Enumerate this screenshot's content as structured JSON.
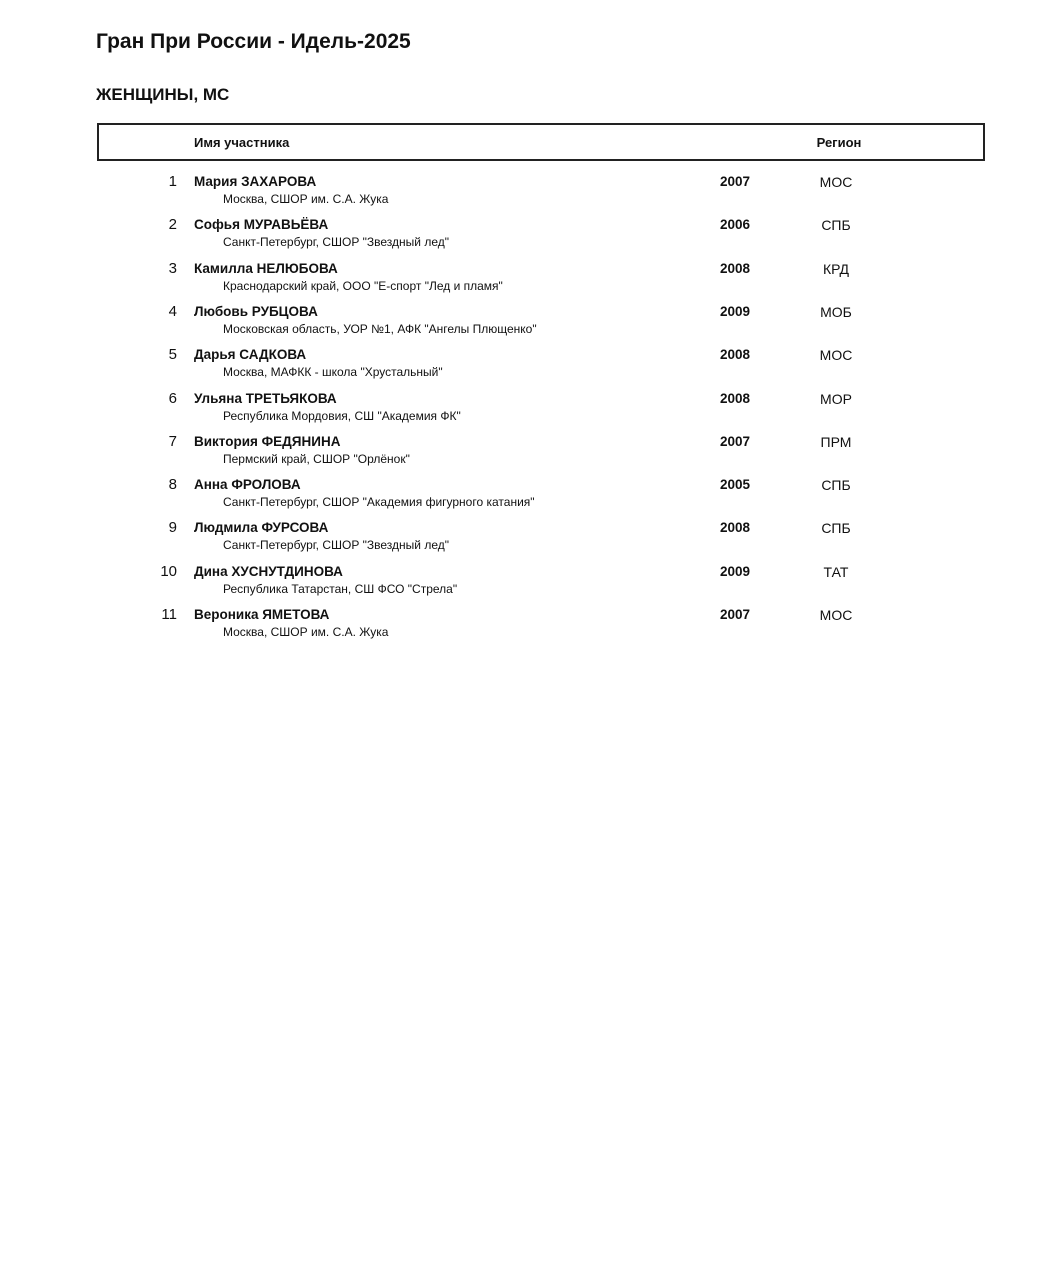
{
  "title": "Гран При России - Идель-2025",
  "category": "ЖЕНЩИНЫ, МС",
  "header": {
    "name": "Имя участника",
    "region": "Регион"
  },
  "participants": [
    {
      "num": "1",
      "name": "Мария ЗАХАРОВА",
      "club": "Москва, СШОР им. С.А. Жука",
      "year": "2007",
      "region": "МОС"
    },
    {
      "num": "2",
      "name": "Софья МУРАВЬЁВА",
      "club": "Санкт-Петербург, СШОР \"Звездный лед\"",
      "year": "2006",
      "region": "СПБ"
    },
    {
      "num": "3",
      "name": "Камилла НЕЛЮБОВА",
      "club": "Краснодарский край, ООО \"Е-спорт \"Лед и пламя\"",
      "year": "2008",
      "region": "КРД"
    },
    {
      "num": "4",
      "name": "Любовь РУБЦОВА",
      "club": "Московская область, УОР №1, АФК \"Ангелы Плющенко\"",
      "year": "2009",
      "region": "МОБ"
    },
    {
      "num": "5",
      "name": "Дарья САДКОВА",
      "club": "Москва, МАФКК - школа \"Хрустальный\"",
      "year": "2008",
      "region": "МОС"
    },
    {
      "num": "6",
      "name": "Ульяна ТРЕТЬЯКОВА",
      "club": "Республика Мордовия, СШ \"Академия ФК\"",
      "year": "2008",
      "region": "МОР"
    },
    {
      "num": "7",
      "name": "Виктория ФЕДЯНИНА",
      "club": "Пермский край, СШОР \"Орлёнок\"",
      "year": "2007",
      "region": "ПРМ"
    },
    {
      "num": "8",
      "name": "Анна ФРОЛОВА",
      "club": "Санкт-Петербург, СШОР \"Академия фигурного катания\"",
      "year": "2005",
      "region": "СПБ"
    },
    {
      "num": "9",
      "name": "Людмила ФУРСОВА",
      "club": "Санкт-Петербург, СШОР \"Звездный лед\"",
      "year": "2008",
      "region": "СПБ"
    },
    {
      "num": "10",
      "name": "Дина ХУСНУТДИНОВА",
      "club": "Республика Татарстан, СШ ФСО \"Стрела\"",
      "year": "2009",
      "region": "ТАТ"
    },
    {
      "num": "11",
      "name": "Вероника ЯМЕТОВА",
      "club": "Москва, СШОР им. С.А. Жука",
      "year": "2007",
      "region": "МОС"
    }
  ]
}
